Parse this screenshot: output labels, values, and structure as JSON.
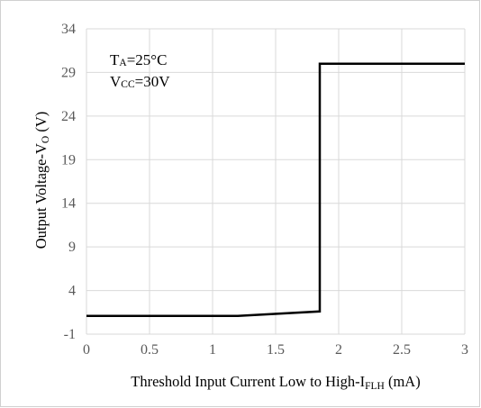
{
  "chart_data": {
    "type": "line",
    "xlabel": {
      "main": "Threshold Input Current Low to High-I",
      "sub": "FLH",
      "tail": " (mA)"
    },
    "ylabel": {
      "main": "Output Voltage-V",
      "sub": "O",
      "tail": " (V)"
    },
    "xlim": [
      0,
      3
    ],
    "ylim": [
      -1,
      34
    ],
    "xticks": [
      0,
      0.5,
      1,
      1.5,
      2,
      2.5,
      3
    ],
    "xtick_labels": [
      "0",
      "0.5",
      "1",
      "1.5",
      "2",
      "2.5",
      "3"
    ],
    "yticks": [
      -1,
      4,
      9,
      14,
      19,
      24,
      29,
      34
    ],
    "ytick_labels": [
      "-1",
      "4",
      "9",
      "14",
      "19",
      "24",
      "29",
      "34"
    ],
    "grid": true,
    "legend": "none",
    "line_color": "#000000",
    "grid_color": "#d9d9d9",
    "series": [
      {
        "x": [
          0,
          1.2,
          1.85,
          1.85,
          3
        ],
        "y": [
          1.1,
          1.1,
          1.6,
          30,
          30
        ]
      }
    ],
    "annotations": [
      {
        "main": "T",
        "sub": "A",
        "tail": "=25°C"
      },
      {
        "main": "V",
        "sub": "CC",
        "tail": "=30V"
      }
    ]
  }
}
